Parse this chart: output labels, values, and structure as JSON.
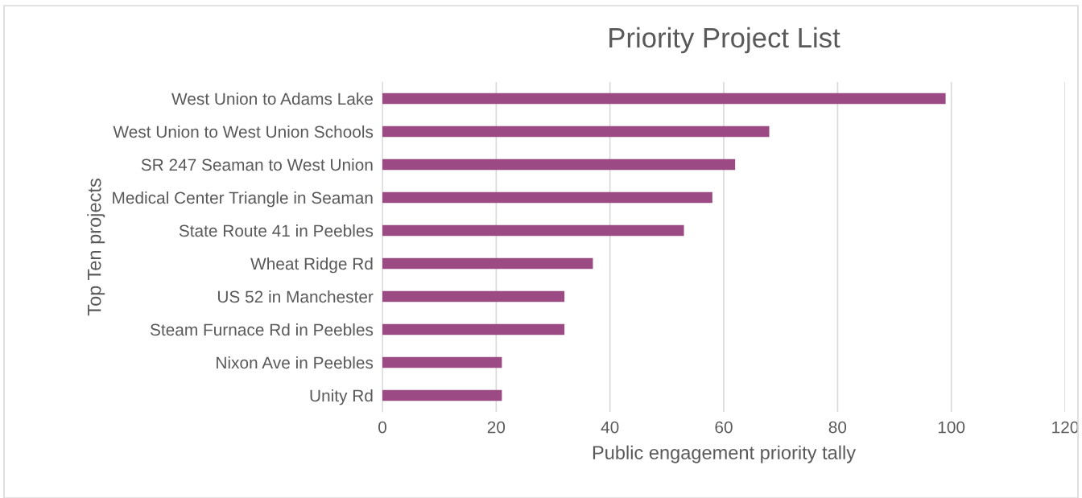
{
  "chart_data": {
    "type": "bar",
    "orientation": "horizontal",
    "title": "Priority Project List",
    "xlabel": "Public engagement priority tally",
    "ylabel": "Top Ten projects",
    "categories": [
      "West Union to Adams Lake",
      "West Union to West Union Schools",
      "SR 247 Seaman to West Union",
      "Medical Center Triangle in Seaman",
      "State Route 41 in Peebles",
      "Wheat Ridge Rd",
      "US 52 in Manchester",
      "Steam Furnace Rd in Peebles",
      "Nixon Ave in Peebles",
      "Unity Rd"
    ],
    "values": [
      99,
      68,
      62,
      58,
      53,
      37,
      32,
      32,
      21,
      21
    ],
    "color": "#9c4a84",
    "xlim": [
      0,
      120
    ],
    "xticks": [
      0,
      20,
      40,
      60,
      80,
      100,
      120
    ],
    "grid": "x",
    "legend": false
  }
}
